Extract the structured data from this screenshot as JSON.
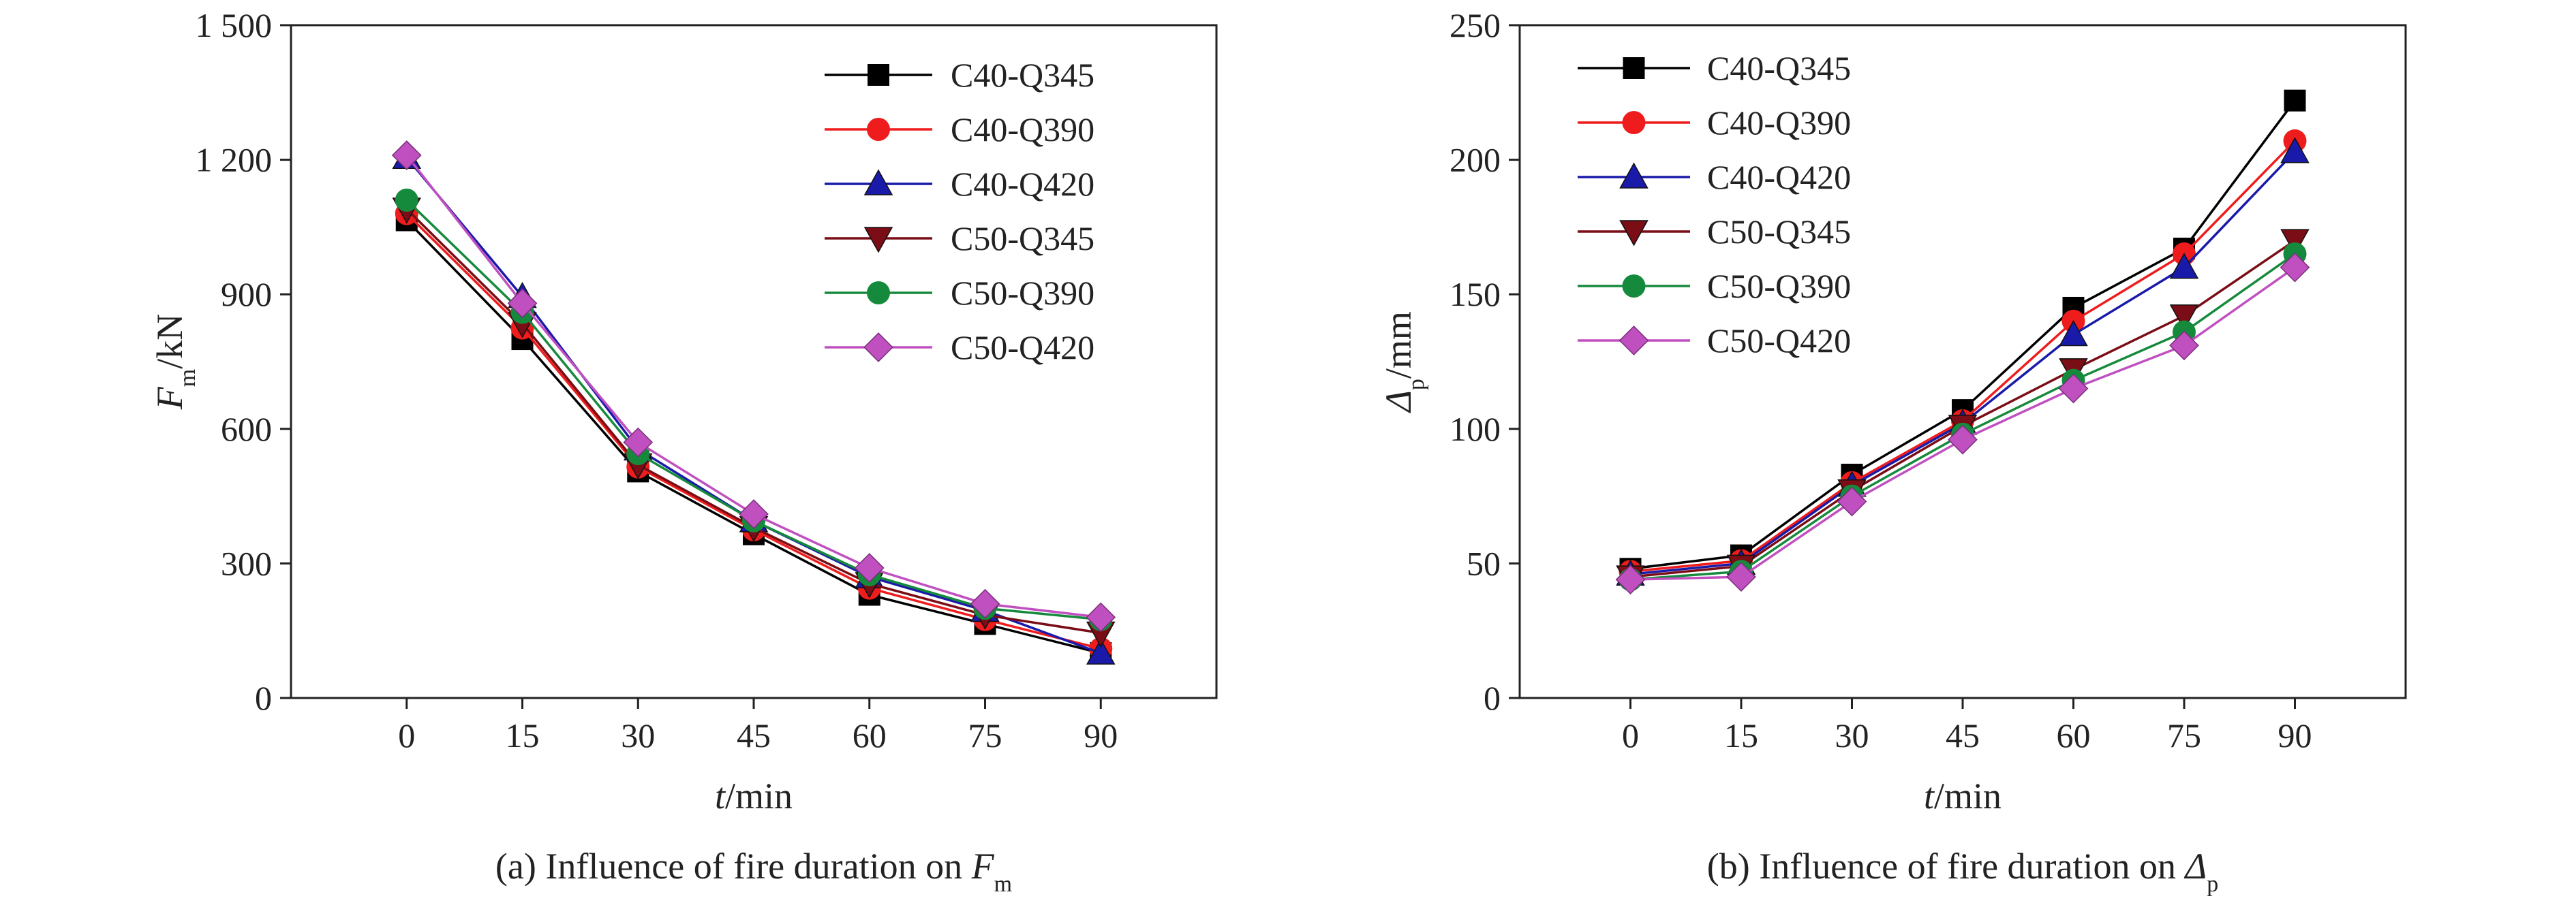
{
  "chart_data": [
    {
      "type": "line",
      "title": "(a) Influence of fire duration on F",
      "title_sub": "m",
      "xlabel": "t/min",
      "xlabel_italic": "t",
      "xlabel_rest": "/min",
      "ylabel": "F/kN",
      "ylabel_italic": "F",
      "ylabel_sub": "m",
      "ylabel_rest": "/kN",
      "x": [
        0,
        15,
        30,
        45,
        60,
        75,
        90
      ],
      "xlim": [
        -15,
        105
      ],
      "ylim": [
        0,
        1500
      ],
      "xticks": [
        "0",
        "15",
        "30",
        "45",
        "60",
        "75",
        "90"
      ],
      "yticks": [
        "0",
        "300",
        "600",
        "900",
        "1 200",
        "1 500"
      ],
      "legend_position": "top-right",
      "grid": false,
      "series": [
        {
          "name": "C40-Q345",
          "color": "#000000",
          "marker": "square",
          "values": [
            1065,
            800,
            505,
            365,
            230,
            165,
            100
          ]
        },
        {
          "name": "C40-Q390",
          "color": "#ee1c1c",
          "marker": "circle",
          "values": [
            1080,
            825,
            515,
            375,
            245,
            175,
            110
          ]
        },
        {
          "name": "C40-Q420",
          "color": "#1a1aaa",
          "marker": "triangle-up",
          "values": [
            1205,
            895,
            555,
            395,
            270,
            195,
            100
          ]
        },
        {
          "name": "C50-Q345",
          "color": "#7a0d15",
          "marker": "triangle-down",
          "values": [
            1090,
            835,
            520,
            380,
            255,
            185,
            145
          ]
        },
        {
          "name": "C50-Q390",
          "color": "#168a3c",
          "marker": "circle",
          "values": [
            1110,
            860,
            545,
            395,
            275,
            200,
            175
          ]
        },
        {
          "name": "C50-Q420",
          "color": "#c050c0",
          "marker": "diamond",
          "values": [
            1210,
            880,
            570,
            410,
            290,
            210,
            180
          ]
        }
      ]
    },
    {
      "type": "line",
      "title": "(b) Influence of fire duration on Δ",
      "title_sub": "p",
      "xlabel": "t/min",
      "xlabel_italic": "t",
      "xlabel_rest": "/min",
      "ylabel": "Δ/mm",
      "ylabel_italic": "Δ",
      "ylabel_sub": "p",
      "ylabel_rest": "/mm",
      "x": [
        0,
        15,
        30,
        45,
        60,
        75,
        90
      ],
      "xlim": [
        -15,
        105
      ],
      "ylim": [
        0,
        250
      ],
      "xticks": [
        "0",
        "15",
        "30",
        "45",
        "60",
        "75",
        "90"
      ],
      "yticks": [
        "0",
        "50",
        "100",
        "150",
        "200",
        "250"
      ],
      "legend_position": "top-left",
      "grid": false,
      "series": [
        {
          "name": "C40-Q345",
          "color": "#000000",
          "marker": "square",
          "values": [
            48,
            53,
            83,
            107,
            145,
            167,
            222
          ]
        },
        {
          "name": "C40-Q390",
          "color": "#ee1c1c",
          "marker": "circle",
          "values": [
            47,
            51,
            80,
            103,
            140,
            165,
            207
          ]
        },
        {
          "name": "C40-Q420",
          "color": "#1a1aaa",
          "marker": "triangle-up",
          "values": [
            46,
            50,
            79,
            102,
            135,
            160,
            203
          ]
        },
        {
          "name": "C50-Q345",
          "color": "#7a0d15",
          "marker": "triangle-down",
          "values": [
            45,
            49,
            77,
            101,
            122,
            142,
            170
          ]
        },
        {
          "name": "C50-Q390",
          "color": "#168a3c",
          "marker": "circle",
          "values": [
            44,
            47,
            75,
            98,
            118,
            136,
            165
          ]
        },
        {
          "name": "C50-Q420",
          "color": "#c050c0",
          "marker": "diamond",
          "values": [
            44,
            45,
            73,
            96,
            115,
            131,
            160
          ]
        }
      ]
    }
  ]
}
